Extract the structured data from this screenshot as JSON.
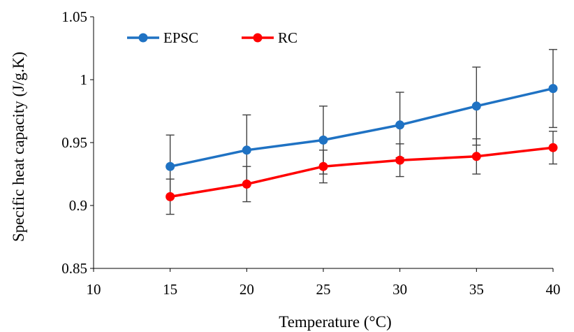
{
  "chart_data": {
    "type": "line",
    "title": "",
    "xlabel": "Temperature (°C)",
    "ylabel": "Specific heat capacity (J/g.K)",
    "xlim": [
      10,
      40
    ],
    "ylim": [
      0.85,
      1.05
    ],
    "x_ticks": [
      "10",
      "15",
      "20",
      "25",
      "30",
      "35",
      "40"
    ],
    "y_ticks": [
      "0.85",
      "0.9",
      "0.95",
      "1",
      "1.05"
    ],
    "grid": false,
    "legend_position": "top-left",
    "x": [
      15,
      20,
      25,
      30,
      35,
      40
    ],
    "series": [
      {
        "name": "EPSC",
        "color": "#1f72c3",
        "values": [
          0.931,
          0.944,
          0.952,
          0.964,
          0.979,
          0.993
        ],
        "error": [
          0.025,
          0.028,
          0.027,
          0.026,
          0.031,
          0.031
        ]
      },
      {
        "name": "RC",
        "color": "#ff0000",
        "values": [
          0.907,
          0.917,
          0.931,
          0.936,
          0.939,
          0.946
        ],
        "error": [
          0.014,
          0.014,
          0.013,
          0.013,
          0.014,
          0.013
        ]
      }
    ]
  }
}
